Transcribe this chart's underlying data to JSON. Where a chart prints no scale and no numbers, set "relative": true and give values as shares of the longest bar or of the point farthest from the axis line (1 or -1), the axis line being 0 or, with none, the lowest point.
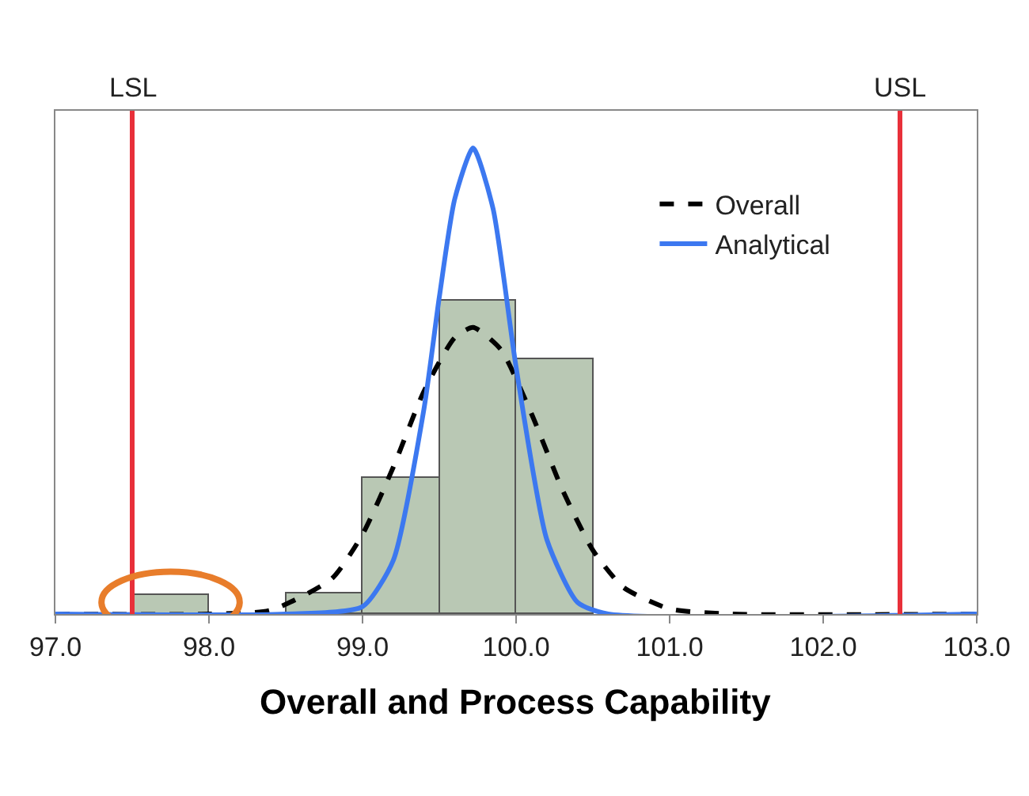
{
  "chart_data": {
    "type": "histogram",
    "title": "Overall and Process Capability",
    "relative": true,
    "bins": [
      97.5,
      98.0,
      98.5,
      99.0,
      99.5,
      100.0,
      100.5
    ],
    "values": [
      0.041,
      0,
      0.044,
      0.293,
      0.672,
      0.546
    ],
    "color": "#b9c8b4",
    "series": [
      {
        "type": "line",
        "name": "Overall",
        "color": "#000000",
        "line_style": "dashed",
        "x": [
          97.0,
          98.0,
          98.4,
          98.8,
          99.0,
          99.2,
          99.4,
          99.6,
          99.72,
          99.9,
          100.1,
          100.3,
          100.5,
          100.7,
          101.0,
          101.4,
          103.0
        ],
        "values": [
          0,
          0,
          0.008,
          0.076,
          0.171,
          0.315,
          0.478,
          0.593,
          0.615,
          0.568,
          0.43,
          0.268,
          0.137,
          0.057,
          0.011,
          0,
          0
        ]
      },
      {
        "type": "line",
        "name": "Analytical",
        "color": "#3c78f0",
        "line_style": "solid",
        "x": [
          97.0,
          98.5,
          99.0,
          99.2,
          99.4,
          99.5,
          99.6,
          99.72,
          99.85,
          100.0,
          100.2,
          100.4,
          100.6,
          103.0
        ],
        "values": [
          0,
          0,
          0.016,
          0.115,
          0.44,
          0.68,
          0.89,
          1,
          0.87,
          0.53,
          0.16,
          0.025,
          0,
          0
        ]
      }
    ],
    "xlim": [
      97.0,
      103.0
    ],
    "xticks": [
      {
        "value": 97,
        "label": "97.0"
      },
      {
        "value": 98,
        "label": "98.0"
      },
      {
        "value": 99,
        "label": "99.0"
      },
      {
        "value": 100,
        "label": "100.0"
      },
      {
        "value": 101,
        "label": "101.0"
      },
      {
        "value": 102,
        "label": "102.0"
      },
      {
        "value": 103,
        "label": "103.0"
      }
    ],
    "ref_lines": [
      {
        "axis": "x",
        "value": 97.5,
        "label": "LSL",
        "color": "#e8303a"
      },
      {
        "axis": "x",
        "value": 102.5,
        "label": "USL",
        "color": "#e8303a"
      }
    ],
    "legend": "top right",
    "grid": false
  }
}
